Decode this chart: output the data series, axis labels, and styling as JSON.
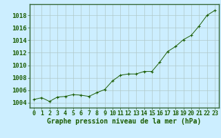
{
  "hours": [
    0,
    1,
    2,
    3,
    4,
    5,
    6,
    7,
    8,
    9,
    10,
    11,
    12,
    13,
    14,
    15,
    16,
    17,
    18,
    19,
    20,
    21,
    22,
    23
  ],
  "pressure": [
    1004.5,
    1004.8,
    1004.2,
    1004.9,
    1005.0,
    1005.3,
    1005.2,
    1005.0,
    1005.6,
    1006.1,
    1007.5,
    1008.4,
    1008.6,
    1008.6,
    1009.0,
    1009.0,
    1010.5,
    1012.2,
    1013.0,
    1014.1,
    1014.8,
    1016.3,
    1018.0,
    1018.8
  ],
  "line_color": "#1a5c00",
  "marker_color": "#1a5c00",
  "bg_color": "#cceeff",
  "grid_color": "#b0c8c8",
  "xlabel": "Graphe pression niveau de la mer (hPa)",
  "ylabel_ticks": [
    1004,
    1006,
    1008,
    1010,
    1012,
    1014,
    1016,
    1018
  ],
  "ylim": [
    1003.2,
    1019.8
  ],
  "xlim": [
    -0.5,
    23.5
  ],
  "tick_color": "#1a5c00",
  "label_fontsize": 6.5,
  "xlabel_fontsize": 7.0,
  "border_color": "#336633"
}
